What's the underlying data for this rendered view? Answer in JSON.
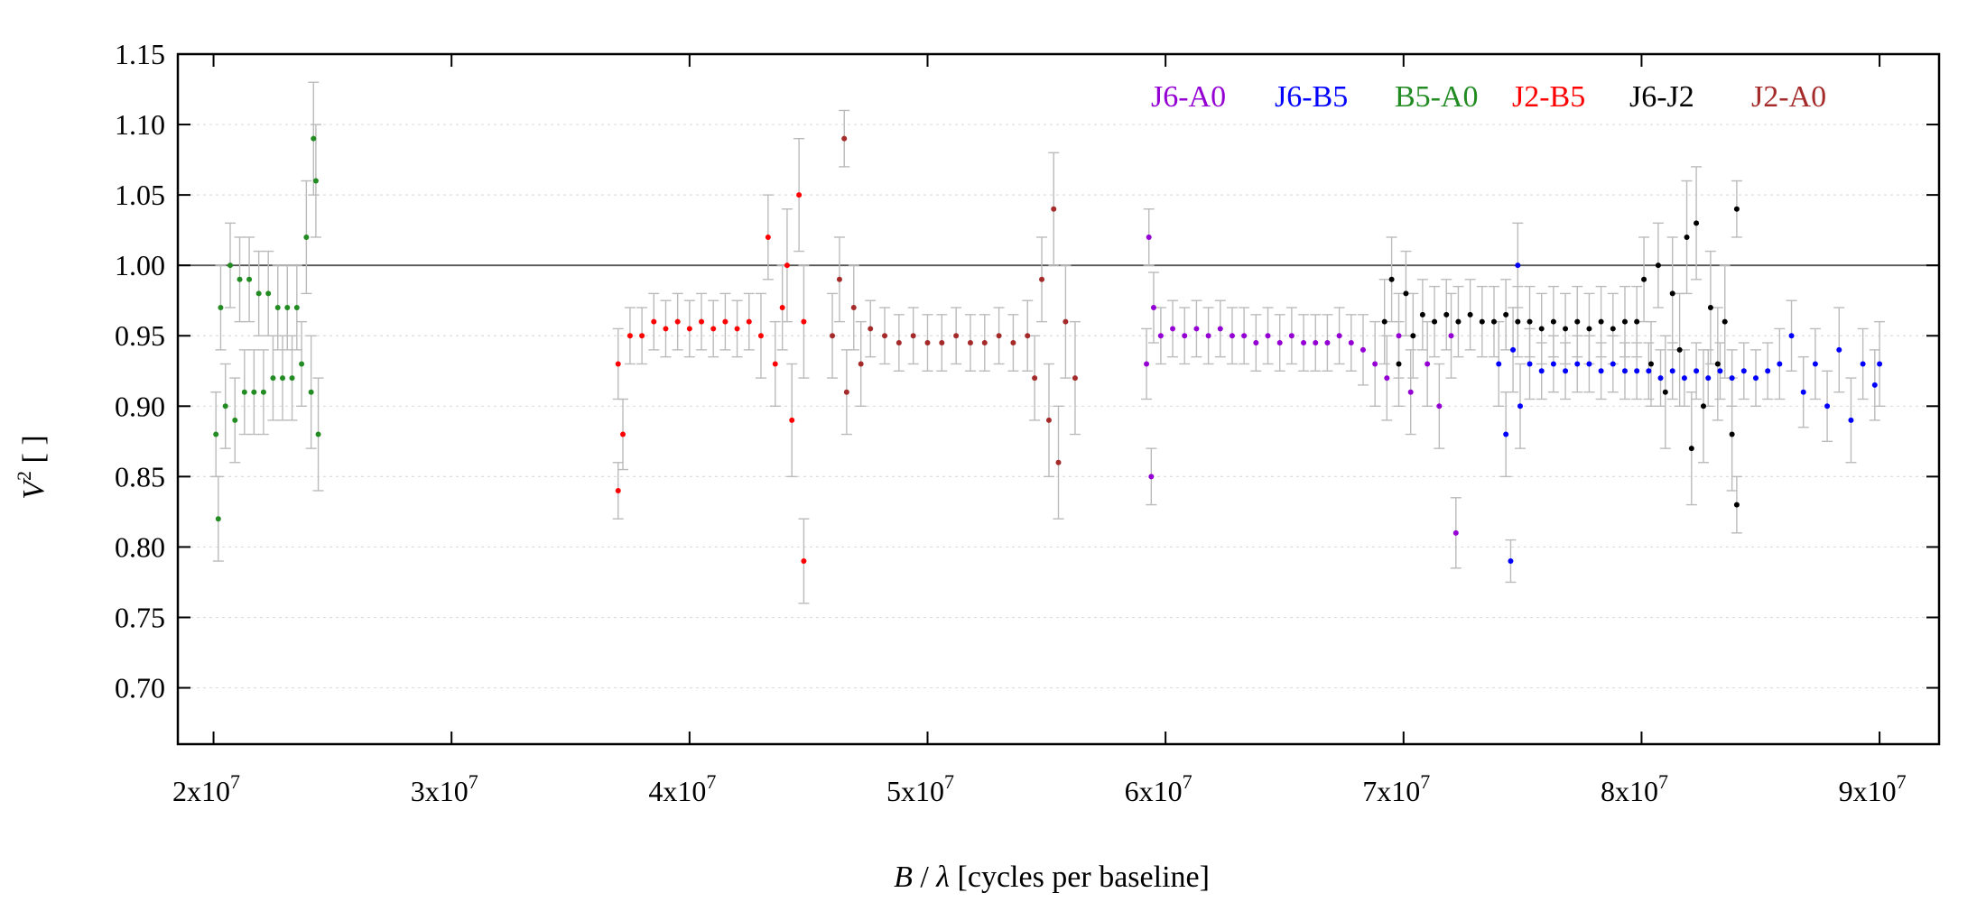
{
  "chart_data": {
    "type": "scatter",
    "title": "",
    "xlabel": {
      "var": "B",
      "sep": " / ",
      "sym": "λ",
      "unit": " [cycles per baseline]"
    },
    "ylabel": {
      "var": "V",
      "sup": "2",
      "unit": " [ ]"
    },
    "xlim": [
      18500000,
      92500000
    ],
    "ylim": [
      0.66,
      1.15
    ],
    "x_ticks": [
      {
        "value": 20000000,
        "mant": "2x10",
        "exp": "7"
      },
      {
        "value": 30000000,
        "mant": "3x10",
        "exp": "7"
      },
      {
        "value": 40000000,
        "mant": "4x10",
        "exp": "7"
      },
      {
        "value": 50000000,
        "mant": "5x10",
        "exp": "7"
      },
      {
        "value": 60000000,
        "mant": "6x10",
        "exp": "7"
      },
      {
        "value": 70000000,
        "mant": "7x10",
        "exp": "7"
      },
      {
        "value": 80000000,
        "mant": "8x10",
        "exp": "7"
      },
      {
        "value": 90000000,
        "mant": "9x10",
        "exp": "7"
      }
    ],
    "y_ticks": [
      {
        "value": 0.7,
        "label": "0.70"
      },
      {
        "value": 0.75,
        "label": "0.75"
      },
      {
        "value": 0.8,
        "label": "0.80"
      },
      {
        "value": 0.85,
        "label": "0.85"
      },
      {
        "value": 0.9,
        "label": "0.90"
      },
      {
        "value": 0.95,
        "label": "0.95"
      },
      {
        "value": 1.0,
        "label": "1.00"
      },
      {
        "value": 1.05,
        "label": "1.05"
      },
      {
        "value": 1.1,
        "label": "1.10"
      },
      {
        "value": 1.15,
        "label": "1.15"
      }
    ],
    "reference_line": 1.0,
    "grid": "horizontal-dotted",
    "legend_position": "top-right",
    "error_bar_color": "#bbbbbb",
    "series": [
      {
        "name": "B5-A0",
        "color": "#228b22",
        "points": [
          [
            20100000,
            0.88,
            0.03
          ],
          [
            20300000,
            0.97,
            0.03
          ],
          [
            20500000,
            0.9,
            0.03
          ],
          [
            20700000,
            1.0,
            0.03
          ],
          [
            20900000,
            0.89,
            0.03
          ],
          [
            21100000,
            0.99,
            0.03
          ],
          [
            21300000,
            0.91,
            0.03
          ],
          [
            21500000,
            0.99,
            0.03
          ],
          [
            21700000,
            0.91,
            0.03
          ],
          [
            21900000,
            0.98,
            0.03
          ],
          [
            22100000,
            0.91,
            0.03
          ],
          [
            22300000,
            0.98,
            0.03
          ],
          [
            22500000,
            0.92,
            0.03
          ],
          [
            22700000,
            0.97,
            0.03
          ],
          [
            22900000,
            0.92,
            0.03
          ],
          [
            23100000,
            0.97,
            0.03
          ],
          [
            23300000,
            0.92,
            0.03
          ],
          [
            23500000,
            0.97,
            0.03
          ],
          [
            23700000,
            0.93,
            0.03
          ],
          [
            23900000,
            1.02,
            0.04
          ],
          [
            24100000,
            0.91,
            0.04
          ],
          [
            24300000,
            1.06,
            0.04
          ],
          [
            24400000,
            0.88,
            0.04
          ],
          [
            20200000,
            0.82,
            0.03
          ],
          [
            24200000,
            1.09,
            0.04
          ]
        ]
      },
      {
        "name": "J2-B5",
        "color": "#ff0000",
        "points": [
          [
            37000000,
            0.93,
            0.025
          ],
          [
            37200000,
            0.88,
            0.025
          ],
          [
            37500000,
            0.95,
            0.02
          ],
          [
            38000000,
            0.95,
            0.02
          ],
          [
            38500000,
            0.96,
            0.02
          ],
          [
            39000000,
            0.955,
            0.02
          ],
          [
            39500000,
            0.96,
            0.02
          ],
          [
            40000000,
            0.955,
            0.02
          ],
          [
            40500000,
            0.96,
            0.02
          ],
          [
            41000000,
            0.955,
            0.02
          ],
          [
            41500000,
            0.96,
            0.02
          ],
          [
            42000000,
            0.955,
            0.02
          ],
          [
            42500000,
            0.96,
            0.02
          ],
          [
            43000000,
            0.95,
            0.03
          ],
          [
            43300000,
            1.02,
            0.03
          ],
          [
            43600000,
            0.93,
            0.03
          ],
          [
            43900000,
            0.97,
            0.03
          ],
          [
            44100000,
            1.0,
            0.04
          ],
          [
            44300000,
            0.89,
            0.04
          ],
          [
            44600000,
            1.05,
            0.04
          ],
          [
            44800000,
            0.96,
            0.04
          ],
          [
            37000000,
            0.84,
            0.02
          ],
          [
            44800000,
            0.79,
            0.03
          ]
        ]
      },
      {
        "name": "J2-A0",
        "color": "#a52a2a",
        "points": [
          [
            46000000,
            0.95,
            0.03
          ],
          [
            46300000,
            0.99,
            0.03
          ],
          [
            46600000,
            0.91,
            0.03
          ],
          [
            46900000,
            0.97,
            0.03
          ],
          [
            47200000,
            0.93,
            0.03
          ],
          [
            47600000,
            0.955,
            0.02
          ],
          [
            48200000,
            0.95,
            0.02
          ],
          [
            48800000,
            0.945,
            0.02
          ],
          [
            49400000,
            0.95,
            0.02
          ],
          [
            50000000,
            0.945,
            0.02
          ],
          [
            50600000,
            0.945,
            0.02
          ],
          [
            51200000,
            0.95,
            0.02
          ],
          [
            51800000,
            0.945,
            0.02
          ],
          [
            52400000,
            0.945,
            0.02
          ],
          [
            53000000,
            0.95,
            0.02
          ],
          [
            53600000,
            0.945,
            0.02
          ],
          [
            54200000,
            0.95,
            0.025
          ],
          [
            54500000,
            0.92,
            0.03
          ],
          [
            54800000,
            0.99,
            0.03
          ],
          [
            55100000,
            0.89,
            0.04
          ],
          [
            55300000,
            1.04,
            0.04
          ],
          [
            55500000,
            0.86,
            0.04
          ],
          [
            55800000,
            0.96,
            0.04
          ],
          [
            56200000,
            0.92,
            0.04
          ],
          [
            46500000,
            1.09,
            0.02
          ]
        ]
      },
      {
        "name": "J6-A0",
        "color": "#9400d3",
        "points": [
          [
            59200000,
            0.93,
            0.025
          ],
          [
            59500000,
            0.97,
            0.025
          ],
          [
            59800000,
            0.95,
            0.02
          ],
          [
            60300000,
            0.955,
            0.02
          ],
          [
            60800000,
            0.95,
            0.02
          ],
          [
            61300000,
            0.955,
            0.02
          ],
          [
            61800000,
            0.95,
            0.02
          ],
          [
            62300000,
            0.955,
            0.02
          ],
          [
            62800000,
            0.95,
            0.02
          ],
          [
            63300000,
            0.95,
            0.02
          ],
          [
            63800000,
            0.945,
            0.02
          ],
          [
            64300000,
            0.95,
            0.02
          ],
          [
            64800000,
            0.945,
            0.02
          ],
          [
            65300000,
            0.95,
            0.02
          ],
          [
            65800000,
            0.945,
            0.02
          ],
          [
            66300000,
            0.945,
            0.02
          ],
          [
            66800000,
            0.945,
            0.02
          ],
          [
            67300000,
            0.95,
            0.02
          ],
          [
            67800000,
            0.945,
            0.02
          ],
          [
            68300000,
            0.94,
            0.025
          ],
          [
            68800000,
            0.93,
            0.03
          ],
          [
            69300000,
            0.92,
            0.03
          ],
          [
            69800000,
            0.95,
            0.03
          ],
          [
            70300000,
            0.91,
            0.03
          ],
          [
            71000000,
            0.93,
            0.03
          ],
          [
            71500000,
            0.9,
            0.03
          ],
          [
            72000000,
            0.95,
            0.03
          ],
          [
            72200000,
            0.81,
            0.025
          ],
          [
            59300000,
            1.02,
            0.02
          ],
          [
            59400000,
            0.85,
            0.02
          ]
        ]
      },
      {
        "name": "J6-B5",
        "color": "#0000ff",
        "points": [
          [
            74000000,
            0.93,
            0.03
          ],
          [
            74300000,
            0.88,
            0.03
          ],
          [
            74600000,
            0.94,
            0.03
          ],
          [
            74900000,
            0.9,
            0.03
          ],
          [
            75300000,
            0.93,
            0.025
          ],
          [
            75800000,
            0.925,
            0.02
          ],
          [
            76300000,
            0.93,
            0.02
          ],
          [
            76800000,
            0.925,
            0.02
          ],
          [
            77300000,
            0.93,
            0.02
          ],
          [
            77800000,
            0.93,
            0.02
          ],
          [
            78300000,
            0.925,
            0.02
          ],
          [
            78800000,
            0.93,
            0.02
          ],
          [
            79300000,
            0.925,
            0.02
          ],
          [
            79800000,
            0.925,
            0.02
          ],
          [
            80300000,
            0.925,
            0.02
          ],
          [
            80800000,
            0.92,
            0.02
          ],
          [
            81300000,
            0.925,
            0.02
          ],
          [
            81800000,
            0.92,
            0.02
          ],
          [
            82300000,
            0.925,
            0.02
          ],
          [
            82800000,
            0.92,
            0.02
          ],
          [
            83300000,
            0.925,
            0.02
          ],
          [
            83800000,
            0.92,
            0.02
          ],
          [
            84300000,
            0.925,
            0.02
          ],
          [
            84800000,
            0.92,
            0.02
          ],
          [
            85300000,
            0.925,
            0.02
          ],
          [
            85800000,
            0.93,
            0.025
          ],
          [
            86300000,
            0.95,
            0.025
          ],
          [
            86800000,
            0.91,
            0.025
          ],
          [
            87300000,
            0.93,
            0.025
          ],
          [
            87800000,
            0.9,
            0.025
          ],
          [
            88300000,
            0.94,
            0.03
          ],
          [
            88800000,
            0.89,
            0.03
          ],
          [
            89300000,
            0.93,
            0.025
          ],
          [
            89800000,
            0.915,
            0.025
          ],
          [
            90000000,
            0.93,
            0.03
          ],
          [
            74500000,
            0.79,
            0.015
          ],
          [
            74800000,
            1.0,
            0.03
          ]
        ]
      },
      {
        "name": "J6-J2",
        "color": "#000000",
        "points": [
          [
            69200000,
            0.96,
            0.03
          ],
          [
            69500000,
            0.99,
            0.03
          ],
          [
            69800000,
            0.93,
            0.03
          ],
          [
            70100000,
            0.98,
            0.03
          ],
          [
            70400000,
            0.95,
            0.03
          ],
          [
            70800000,
            0.965,
            0.025
          ],
          [
            71300000,
            0.96,
            0.025
          ],
          [
            71800000,
            0.965,
            0.025
          ],
          [
            72300000,
            0.96,
            0.025
          ],
          [
            72800000,
            0.965,
            0.025
          ],
          [
            73300000,
            0.96,
            0.025
          ],
          [
            73800000,
            0.96,
            0.025
          ],
          [
            74300000,
            0.965,
            0.025
          ],
          [
            74800000,
            0.96,
            0.025
          ],
          [
            75300000,
            0.96,
            0.025
          ],
          [
            75800000,
            0.955,
            0.025
          ],
          [
            76300000,
            0.96,
            0.025
          ],
          [
            76800000,
            0.955,
            0.025
          ],
          [
            77300000,
            0.96,
            0.025
          ],
          [
            77800000,
            0.955,
            0.025
          ],
          [
            78300000,
            0.96,
            0.025
          ],
          [
            78800000,
            0.955,
            0.025
          ],
          [
            79300000,
            0.96,
            0.025
          ],
          [
            79800000,
            0.96,
            0.025
          ],
          [
            80100000,
            0.99,
            0.03
          ],
          [
            80400000,
            0.93,
            0.03
          ],
          [
            80700000,
            1.0,
            0.03
          ],
          [
            81000000,
            0.91,
            0.04
          ],
          [
            81300000,
            0.98,
            0.04
          ],
          [
            81600000,
            0.94,
            0.04
          ],
          [
            81900000,
            1.02,
            0.04
          ],
          [
            82100000,
            0.87,
            0.04
          ],
          [
            82300000,
            1.03,
            0.04
          ],
          [
            82600000,
            0.9,
            0.04
          ],
          [
            82900000,
            0.97,
            0.04
          ],
          [
            83200000,
            0.93,
            0.04
          ],
          [
            83500000,
            0.96,
            0.04
          ],
          [
            83800000,
            0.88,
            0.04
          ],
          [
            84000000,
            1.04,
            0.02
          ],
          [
            84000000,
            0.83,
            0.02
          ]
        ]
      }
    ],
    "legend_order": [
      "J6-A0",
      "J6-B5",
      "B5-A0",
      "J2-B5",
      "J6-J2",
      "J2-A0"
    ]
  }
}
